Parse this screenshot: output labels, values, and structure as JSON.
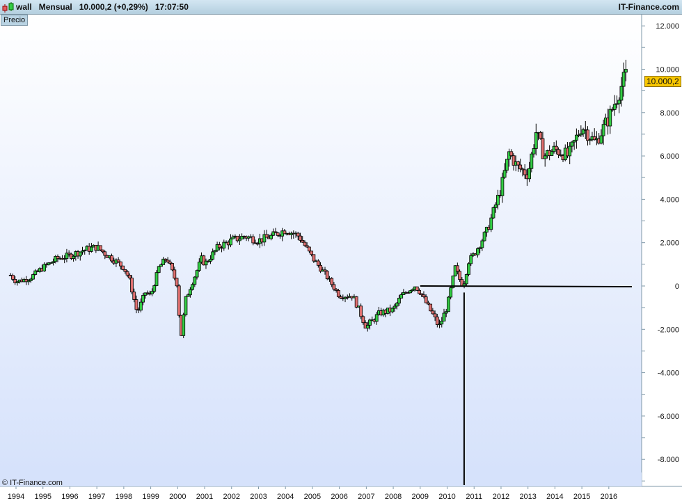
{
  "header": {
    "symbol": "wall",
    "period": "Mensual",
    "last": "10.000,2 (+0,29%)",
    "time": "17:07:50",
    "brand": "IT-Finance.com",
    "icon": "candlestick-icon"
  },
  "panel_label": "Precio",
  "copyright": "© IT-Finance.com",
  "colors": {
    "up": "#33cc44",
    "down": "#e07070",
    "background_top": "#ffffff",
    "background_bottom": "#d6e2fb",
    "price_tag": "#f7c600"
  },
  "chart_data": {
    "type": "candlestick",
    "period": "monthly",
    "ylim": [
      -9200,
      12500
    ],
    "y_ticks": [
      "12.000",
      "10.000",
      "8.000",
      "6.000",
      "4.000",
      "2.000",
      "0",
      "-2.000",
      "-4.000",
      "-6.000",
      "-8.000"
    ],
    "y_tick_values": [
      12000,
      10000,
      8000,
      6000,
      4000,
      2000,
      0,
      -2000,
      -4000,
      -6000,
      -8000
    ],
    "x_ticks": [
      "1994",
      "1995",
      "1996",
      "1997",
      "1998",
      "1999",
      "2000",
      "2001",
      "2002",
      "2003",
      "2004",
      "2005",
      "2006",
      "2007",
      "2008",
      "2009",
      "2010",
      "2011",
      "2012",
      "2013",
      "2014",
      "2015",
      "2016"
    ],
    "last_price_label": "10.000,2",
    "last_price": 10000.2,
    "approx_close_path": [
      [
        1993.8,
        500
      ],
      [
        1994.0,
        200
      ],
      [
        1994.5,
        350
      ],
      [
        1995.0,
        850
      ],
      [
        1995.5,
        1250
      ],
      [
        1996.0,
        1400
      ],
      [
        1996.5,
        1650
      ],
      [
        1997.0,
        1800
      ],
      [
        1997.3,
        1500
      ],
      [
        1997.7,
        1150
      ],
      [
        1998.0,
        850
      ],
      [
        1998.2,
        350
      ],
      [
        1998.5,
        -1250
      ],
      [
        1998.8,
        -300
      ],
      [
        1999.0,
        -450
      ],
      [
        1999.3,
        850
      ],
      [
        1999.6,
        1300
      ],
      [
        2000.0,
        0
      ],
      [
        2000.1,
        -2550
      ],
      [
        2000.3,
        -600
      ],
      [
        2000.6,
        350
      ],
      [
        2000.9,
        1300
      ],
      [
        2001.0,
        1000
      ],
      [
        2001.5,
        1800
      ],
      [
        2002.0,
        2100
      ],
      [
        2002.5,
        2300
      ],
      [
        2003.0,
        2100
      ],
      [
        2003.5,
        2300
      ],
      [
        2004.0,
        2600
      ],
      [
        2004.5,
        2300
      ],
      [
        2005.0,
        1300
      ],
      [
        2005.5,
        500
      ],
      [
        2006.0,
        -450
      ],
      [
        2006.5,
        -450
      ],
      [
        2007.0,
        -1900
      ],
      [
        2007.5,
        -1250
      ],
      [
        2008.0,
        -1100
      ],
      [
        2008.3,
        -450
      ],
      [
        2008.8,
        0
      ],
      [
        2009.0,
        -300
      ],
      [
        2009.5,
        -1400
      ],
      [
        2009.7,
        -1900
      ],
      [
        2010.0,
        -950
      ],
      [
        2010.3,
        850
      ],
      [
        2010.5,
        200
      ],
      [
        2010.6,
        0
      ],
      [
        2010.8,
        1150
      ],
      [
        2011.0,
        1450
      ],
      [
        2011.5,
        2600
      ],
      [
        2012.0,
        4500
      ],
      [
        2012.3,
        6150
      ],
      [
        2012.6,
        5500
      ],
      [
        2013.0,
        5150
      ],
      [
        2013.3,
        7100
      ],
      [
        2013.6,
        6000
      ],
      [
        2014.0,
        6300
      ],
      [
        2014.5,
        6000
      ],
      [
        2015.0,
        7400
      ],
      [
        2015.5,
        6600
      ],
      [
        2016.0,
        7750
      ],
      [
        2016.3,
        8700
      ],
      [
        2016.6,
        9650
      ],
      [
        2016.7,
        10000
      ]
    ],
    "annotations": [
      {
        "type": "horizontal-line",
        "value": 0,
        "from": 2009.0
      },
      {
        "type": "vertical-line",
        "at": 2010.63,
        "from_value": -300
      }
    ]
  }
}
